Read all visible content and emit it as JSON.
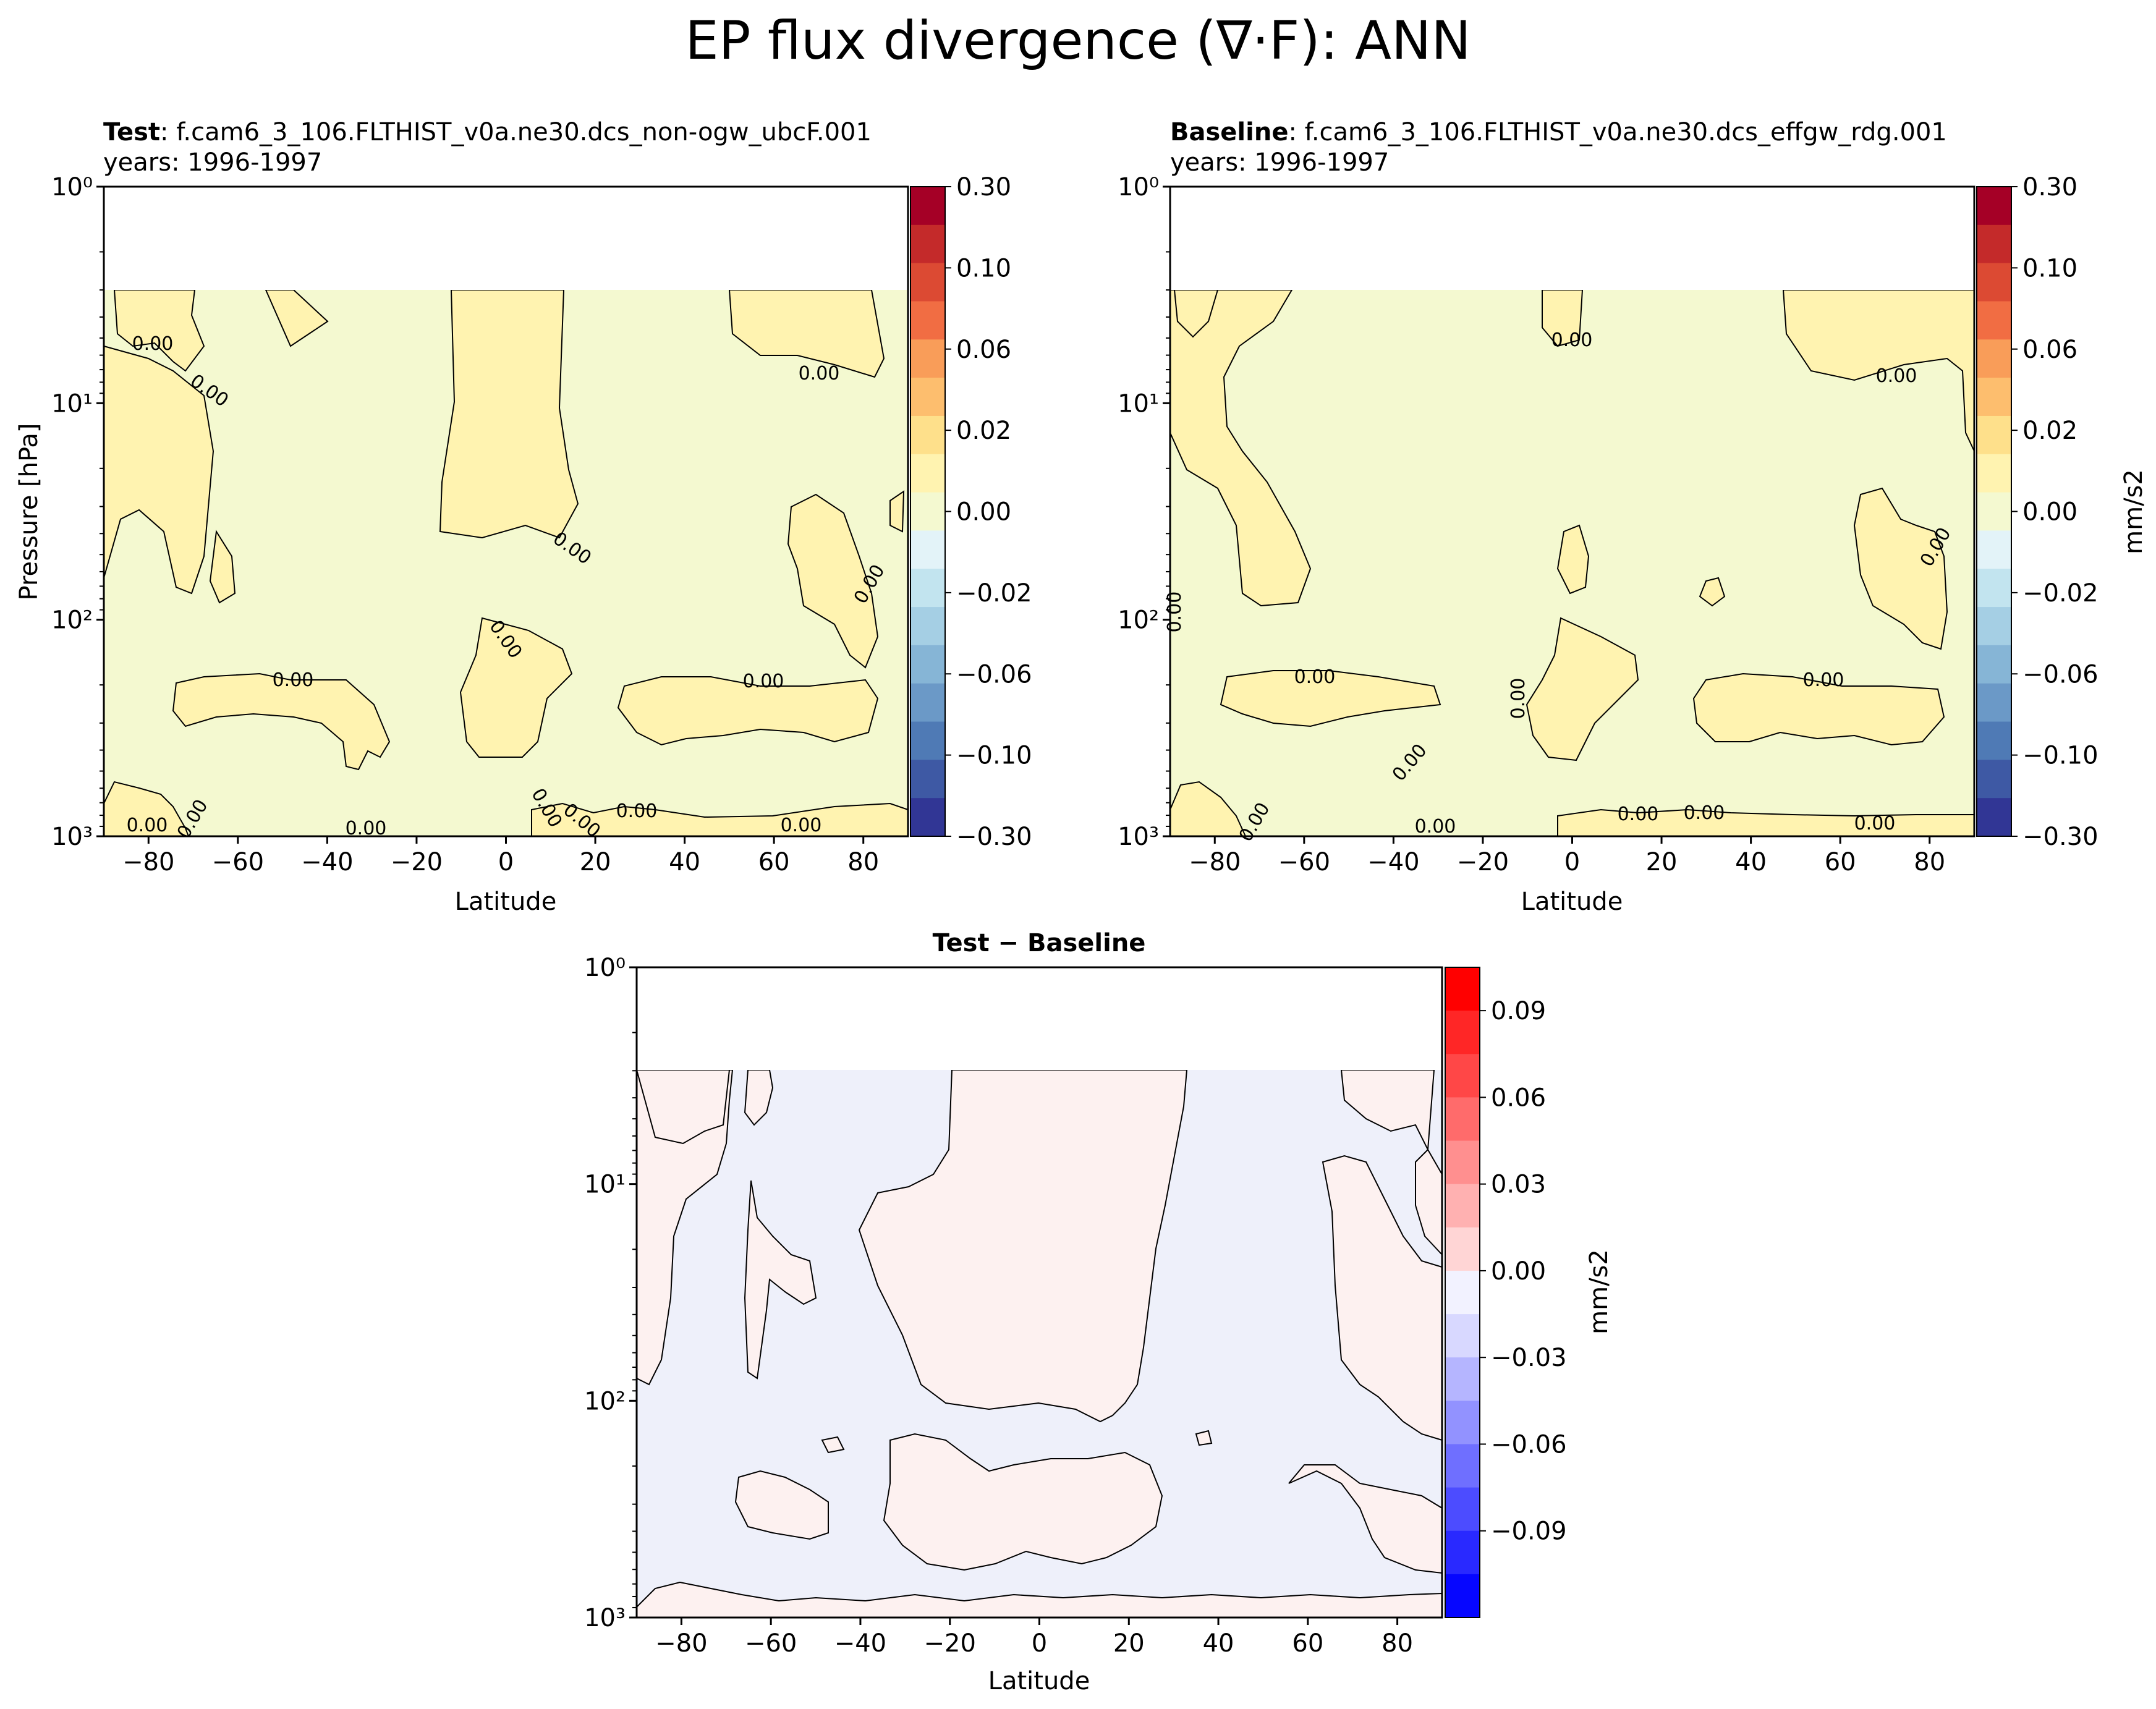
{
  "suptitle": "EP flux divergence (∇·F): ANN",
  "colors": {
    "pos_fill": "#FFF3B0",
    "neutral_fill": "#F4F9D0",
    "diff_pos_fill": "#FDF1F0",
    "diff_neg_fill": "#EEF0FA"
  },
  "panels": {
    "test": {
      "title_bold": "Test",
      "title_case": ": f.cam6_3_106.FLTHIST_v0a.ne30.dcs_non-ogw_ubcF.001",
      "years": "years: 1996-1997",
      "ylabel": "Pressure [hPa]",
      "xlabel": "Latitude"
    },
    "baseline": {
      "title_bold": "Baseline",
      "title_case": ": f.cam6_3_106.FLTHIST_v0a.ne30.dcs_effgw_rdg.001",
      "years": "years: 1996-1997",
      "xlabel": "Latitude",
      "cbar_label": "mm/s2"
    },
    "diff": {
      "title": "Test − Baseline",
      "xlabel": "Latitude",
      "cbar_label": "mm/s2"
    }
  },
  "chart_data": [
    {
      "type": "heatmap",
      "name": "test",
      "x_range": [
        -90,
        90
      ],
      "y_range_hpa": [
        1000,
        1
      ],
      "y_scale": "log",
      "x_ticks": [
        "−80",
        "−60",
        "−40",
        "−20",
        "0",
        "20",
        "40",
        "60",
        "80"
      ],
      "y_ticks": [
        "10⁰",
        "10¹",
        "10²",
        "10³"
      ],
      "colorbar_ticks": [
        "0.30",
        "0.10",
        "0.06",
        "0.02",
        "0.00",
        "−0.02",
        "−0.06",
        "−0.10",
        "−0.30"
      ],
      "colorbar_colors": [
        "#A50026",
        "#C42A2A",
        "#DC4A33",
        "#F16D43",
        "#F99D59",
        "#FDBE6E",
        "#FEE08B",
        "#FFF3B0",
        "#F4F9D0",
        "#E3F3F8",
        "#C2E4EF",
        "#A5CFE4",
        "#86B5D6",
        "#6B99C7",
        "#4F7AB5",
        "#3E59A4",
        "#313695"
      ],
      "contour_labels": [
        "0.00"
      ]
    },
    {
      "type": "heatmap",
      "name": "baseline",
      "x_range": [
        -90,
        90
      ],
      "y_range_hpa": [
        1000,
        1
      ],
      "y_scale": "log",
      "x_ticks": [
        "−80",
        "−60",
        "−40",
        "−20",
        "0",
        "20",
        "40",
        "60",
        "80"
      ],
      "y_ticks": [
        "10⁰",
        "10¹",
        "10²",
        "10³"
      ],
      "colorbar_ticks": [
        "0.30",
        "0.10",
        "0.06",
        "0.02",
        "0.00",
        "−0.02",
        "−0.06",
        "−0.10",
        "−0.30"
      ],
      "colorbar_colors": [
        "#A50026",
        "#C42A2A",
        "#DC4A33",
        "#F16D43",
        "#F99D59",
        "#FDBE6E",
        "#FEE08B",
        "#FFF3B0",
        "#F4F9D0",
        "#E3F3F8",
        "#C2E4EF",
        "#A5CFE4",
        "#86B5D6",
        "#6B99C7",
        "#4F7AB5",
        "#3E59A4",
        "#313695"
      ],
      "contour_labels": [
        "0.00"
      ]
    },
    {
      "type": "heatmap",
      "name": "diff",
      "x_range": [
        -90,
        90
      ],
      "y_range_hpa": [
        1000,
        1
      ],
      "y_scale": "log",
      "x_ticks": [
        "−80",
        "−60",
        "−40",
        "−20",
        "0",
        "20",
        "40",
        "60",
        "80"
      ],
      "y_ticks": [
        "10⁰",
        "10¹",
        "10²",
        "10³"
      ],
      "colorbar_ticks": [
        "0.09",
        "0.06",
        "0.03",
        "0.00",
        "−0.03",
        "−0.06",
        "−0.09"
      ],
      "colorbar_colors": [
        "#FF0000",
        "#FF2626",
        "#FF4747",
        "#FF6B6B",
        "#FF8F8F",
        "#FFB1B1",
        "#FFD5D5",
        "#F2F2FF",
        "#D8D8FF",
        "#B5B5FF",
        "#9292FF",
        "#6F6FFF",
        "#4C4CFF",
        "#2929FF",
        "#0606FF"
      ]
    }
  ]
}
